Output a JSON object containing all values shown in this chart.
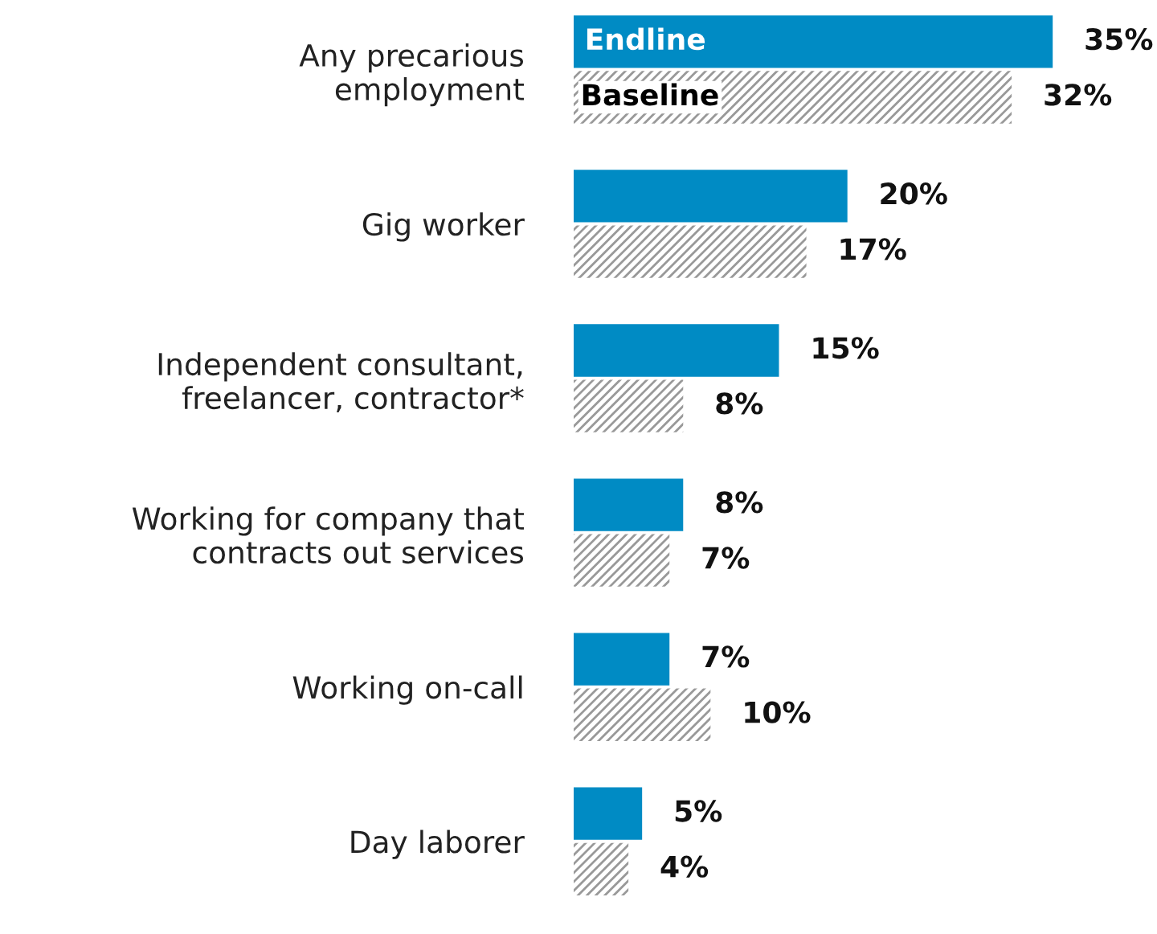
{
  "chart_data": {
    "type": "bar",
    "orientation": "horizontal",
    "categories": [
      "Any precarious\nemployment",
      "Gig worker",
      "Independent consultant,\nfreelancer, contractor*",
      "Working for company that\ncontracts out services",
      "Working on-call",
      "Day laborer"
    ],
    "series": [
      {
        "name": "Endline",
        "color": "#008bc4",
        "values": [
          35,
          20,
          15,
          8,
          7,
          5
        ],
        "value_labels": [
          "35%",
          "20%",
          "15%",
          "8%",
          "7%",
          "5%"
        ]
      },
      {
        "name": "Baseline",
        "color": "#999999",
        "values": [
          32,
          17,
          8,
          7,
          10,
          4
        ],
        "value_labels": [
          "32%",
          "17%",
          "8%",
          "7%",
          "10%",
          "4%"
        ]
      }
    ],
    "tick_labels": "y",
    "grid": false,
    "legend": false
  }
}
